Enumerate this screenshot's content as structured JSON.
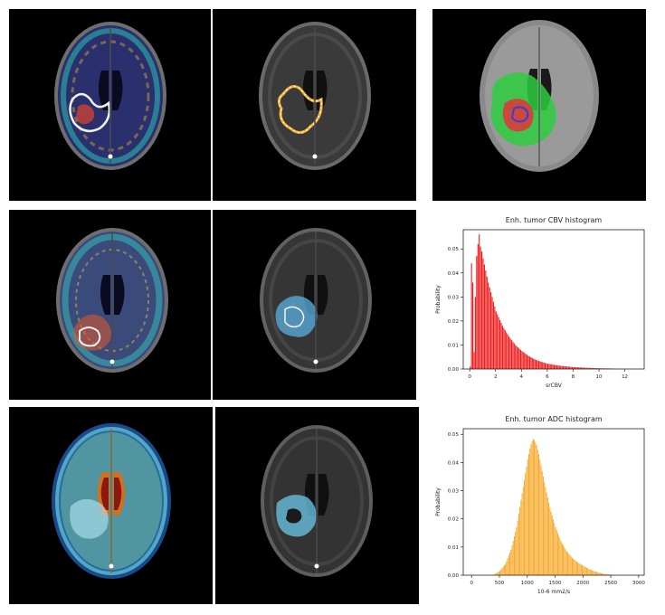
{
  "figure": {
    "rows": [
      {
        "panels": [
          "perfusion-overlay",
          "tumor-contour",
          "segmentation-map"
        ]
      },
      {
        "panels": [
          "perfusion-overlay",
          "tumor-overlay",
          "histogram"
        ]
      },
      {
        "panels": [
          "diffusion-overlay",
          "tumor-overlay",
          "histogram"
        ]
      }
    ]
  },
  "colors": {
    "background": "#000000",
    "brain_gray": "#8a8a8a",
    "cbv_bar": "#ee1c1c",
    "adc_bar": "#f5a623",
    "seg_edema": "#2ecc40",
    "seg_enhancing": "#d93b3b",
    "seg_core": "#3b3bd9"
  },
  "chart_data": [
    {
      "type": "bar",
      "title": "Enh. tumor CBV histogram",
      "xlabel": "srCBV",
      "ylabel": "Probability",
      "xlim": [
        -0.5,
        13.5
      ],
      "ylim": [
        0,
        0.058
      ],
      "xticks": [
        "0",
        "2",
        "4",
        "6",
        "8",
        "10",
        "12"
      ],
      "xtick_values": [
        0,
        2,
        4,
        6,
        8,
        10,
        12
      ],
      "yticks": [
        "0.00",
        "0.01",
        "0.02",
        "0.03",
        "0.04",
        "0.05"
      ],
      "ytick_values": [
        0,
        0.01,
        0.02,
        0.03,
        0.04,
        0.05
      ],
      "bin_width": 0.1,
      "x": [
        0.0,
        0.1,
        0.2,
        0.3,
        0.4,
        0.5,
        0.6,
        0.7,
        0.8,
        0.9,
        1.0,
        1.2,
        1.4,
        1.6,
        1.8,
        2.0,
        2.5,
        3.0,
        3.5,
        4.0,
        4.5,
        5.0,
        5.5,
        6.0,
        7.0,
        8.0,
        9.0,
        10.0,
        11.0,
        11.5
      ],
      "values": [
        0.001,
        0.044,
        0.036,
        0.007,
        0.03,
        0.047,
        0.052,
        0.056,
        0.051,
        0.049,
        0.046,
        0.041,
        0.036,
        0.032,
        0.028,
        0.024,
        0.018,
        0.0135,
        0.01,
        0.0075,
        0.0055,
        0.004,
        0.003,
        0.0022,
        0.0013,
        0.0008,
        0.0005,
        0.0003,
        0.0002,
        0.0001
      ]
    },
    {
      "type": "bar",
      "title": "Enh. tumor ADC histogram",
      "xlabel": "10-6 mm2/s",
      "ylabel": "Probability",
      "xlim": [
        -150,
        3100
      ],
      "ylim": [
        0,
        0.052
      ],
      "xticks": [
        "0",
        "500",
        "1000",
        "1500",
        "2000",
        "2500",
        "3000"
      ],
      "xtick_values": [
        0,
        500,
        1000,
        1500,
        2000,
        2500,
        3000
      ],
      "yticks": [
        "0.00",
        "0.01",
        "0.02",
        "0.03",
        "0.04",
        "0.05"
      ],
      "ytick_values": [
        0,
        0.01,
        0.02,
        0.03,
        0.04,
        0.05
      ],
      "bin_width": 20,
      "x": [
        400,
        500,
        600,
        700,
        800,
        900,
        1000,
        1050,
        1100,
        1150,
        1200,
        1300,
        1400,
        1500,
        1600,
        1700,
        1800,
        1900,
        2000,
        2100,
        2200,
        2300,
        2400,
        2500
      ],
      "values": [
        0.0003,
        0.0015,
        0.004,
        0.009,
        0.017,
        0.029,
        0.041,
        0.046,
        0.0485,
        0.047,
        0.043,
        0.033,
        0.024,
        0.017,
        0.012,
        0.0085,
        0.0062,
        0.0045,
        0.0033,
        0.0022,
        0.0014,
        0.0008,
        0.0004,
        0.0002
      ]
    }
  ]
}
